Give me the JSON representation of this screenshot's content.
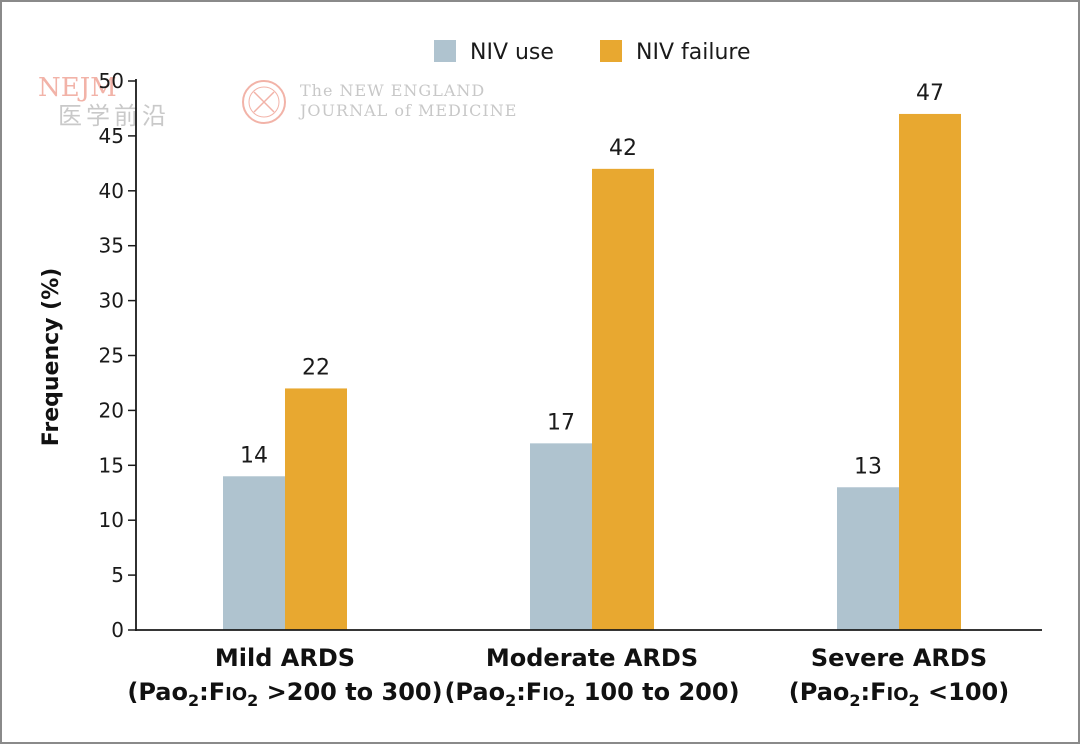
{
  "chart_data": {
    "type": "bar",
    "categories": [
      [
        "Mild ARDS",
        "(Pao",
        "2",
        ":F",
        "IO",
        "2",
        " >200 to 300)"
      ],
      [
        "Moderate ARDS",
        "(Pao",
        "2",
        ":F",
        "IO",
        "2",
        " 100 to 200)"
      ],
      [
        "Severe ARDS",
        "(Pao",
        "2",
        ":F",
        "IO",
        "2",
        " <100)"
      ]
    ],
    "series": [
      {
        "name": "NIV use",
        "color": "#afc3cf",
        "values": [
          14,
          17,
          13
        ]
      },
      {
        "name": "NIV failure",
        "color": "#e8a830",
        "values": [
          22,
          42,
          47
        ]
      }
    ],
    "title": "",
    "xlabel": "",
    "ylabel": "Frequency (%)",
    "ylim": [
      0,
      50
    ],
    "yticks": [
      0,
      5,
      10,
      15,
      20,
      25,
      30,
      35,
      40,
      45,
      50
    ],
    "legend_position": "top-center"
  },
  "watermark": {
    "nejm": "NEJM",
    "chinese": "医学前沿",
    "journal_line1": "The NEW ENGLAND",
    "journal_line2": "JOURNAL of MEDICINE"
  },
  "colors": {
    "axis": "#1a1a1a",
    "frame": "#8a8a8a",
    "seal": "#f2b3a8"
  }
}
